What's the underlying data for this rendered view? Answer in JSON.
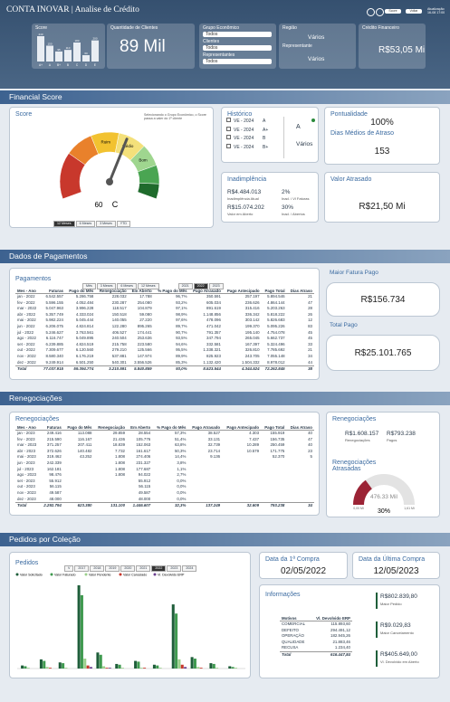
{
  "header": {
    "brand": "CONTA INOVAR",
    "title": "Analise de Crédito",
    "buttons": [
      "Score",
      "Voltar"
    ],
    "update_label": "Atualização",
    "update_time": "16-08 17:00"
  },
  "score_chart": {
    "type": "bar",
    "title": "Score",
    "categories": [
      "A+",
      "A",
      "B+",
      "B",
      "C",
      "D",
      "E"
    ],
    "values": [
      240,
      150,
      95,
      110,
      180,
      60,
      200
    ],
    "color": "#e8edf3"
  },
  "clients": {
    "title": "Quantidade de Clientes",
    "value": "89 Mil"
  },
  "filters": [
    {
      "label": "Grupo Econômico",
      "value": "Todos"
    },
    {
      "label": "Clientes",
      "value": "Todos"
    },
    {
      "label": "Representantes",
      "value": "Todos"
    }
  ],
  "region": {
    "label": "Região",
    "value": "Vários",
    "rep_label": "Representante",
    "rep_value": "Vários"
  },
  "credit": {
    "title": "Crédito Financeiro",
    "value": "R$53,05 Mi"
  },
  "sections": [
    "Financial Score",
    "Dados de Pagamentos",
    "Renegociações",
    "Pedidos por Coleção"
  ],
  "score": {
    "title": "Score",
    "note": "Selecionando o Grupo Econômico, o Score passa a valer do 1º cliente",
    "gauge": {
      "lim": [
        0,
        100
      ],
      "value": 60,
      "grade": "C",
      "bands": [
        {
          "from": 0,
          "to": 25,
          "color": "#c8382c"
        },
        {
          "from": 25,
          "to": 40,
          "color": "#e9812b"
        },
        {
          "from": 40,
          "to": 55,
          "color": "#f2c230",
          "label": "Ruim"
        },
        {
          "from": 55,
          "to": 70,
          "color": "#f4e07a",
          "label": "Médio"
        },
        {
          "from": 70,
          "to": 82,
          "color": "#9fd68f",
          "label": "Bom"
        },
        {
          "from": 82,
          "to": 92,
          "color": "#4aa552"
        },
        {
          "from": 92,
          "to": 100,
          "color": "#1f6b2c"
        }
      ]
    },
    "periods": [
      "12 Meses",
      "6 Meses",
      "3 Meses",
      "YTD"
    ],
    "selected_period": 0
  },
  "historico": {
    "title": "Histórico",
    "items": [
      [
        "VE - 2024",
        "A"
      ],
      [
        "VE - 2024",
        "A+"
      ],
      [
        "VE - 2024",
        "B"
      ],
      [
        "VE - 2024",
        "B+"
      ]
    ],
    "current": "A",
    "group": "Vários"
  },
  "pontualidade": {
    "title": "Pontualidade",
    "value": "100%",
    "dias_title": "Dias Médios de Atraso",
    "dias_value": "153"
  },
  "inadimplencia": {
    "title": "Inadimplência",
    "items": [
      [
        "R$4.484.013",
        "Inadimplência Atual"
      ],
      [
        "2%",
        "Inad. / Vl Faturas"
      ],
      [
        "R$15.074.202",
        "Valor em Aberto"
      ],
      [
        "30%",
        "Inad. / Abertos"
      ]
    ]
  },
  "valor_atrasado": {
    "title": "Valor Atrasado",
    "value": "R$21,50 Mi"
  },
  "pagamentos": {
    "title": "Pagamentos",
    "periods": [
      "Mês",
      "3 Meses",
      "6 Meses",
      "12 Meses"
    ],
    "years": [
      "2021",
      "2022",
      "2023"
    ],
    "selected_year": 1,
    "table": {
      "columns": [
        "Mes - Ano",
        "Faturas",
        "Pago do Mês",
        "Renegociação",
        "Em Aberto",
        "% Pago do Mês",
        "Pago Atrasado",
        "Pago Antecipado",
        "Pago Total",
        "Dias Atraso"
      ],
      "rows": [
        [
          "jan - 2022",
          "6.542.557",
          "5.286.758",
          "228.032",
          "17.788",
          "96,7%",
          "350.591",
          "257.197",
          "5.894.546",
          "21"
        ],
        [
          "fev - 2022",
          "5.596.155",
          "4.052.484",
          "230.287",
          "254.080",
          "93,2%",
          "605.034",
          "236.626",
          "4.864.144",
          "47"
        ],
        [
          "mar - 2022",
          "5.047.963",
          "3.996.228",
          "118.517",
          "104.879",
          "97,1%",
          "891.619",
          "315.416",
          "5.203.263",
          "28"
        ],
        [
          "abr - 2022",
          "5.357.749",
          "4.333.024",
          "150.518",
          "59.080",
          "98,9%",
          "1.148.856",
          "336.342",
          "5.818.222",
          "26"
        ],
        [
          "mai - 2022",
          "5.982.224",
          "5.045.444",
          "140.055",
          "27.220",
          "97,6%",
          "478.096",
          "303.142",
          "5.826.683",
          "12"
        ],
        [
          "jun - 2022",
          "6.206.075",
          "4.824.814",
          "122.280",
          "895.265",
          "89,7%",
          "471.042",
          "199.370",
          "5.095.226",
          "83"
        ],
        [
          "jul - 2022",
          "5.246.627",
          "3.763.561",
          "406.527",
          "174.441",
          "90,7%",
          "791.357",
          "195.140",
          "4.754.078",
          "45"
        ],
        [
          "ago - 2022",
          "6.116.747",
          "5.049.895",
          "240.504",
          "253.636",
          "93,5%",
          "347.794",
          "265.045",
          "5.662.737",
          "45"
        ],
        [
          "set - 2022",
          "6.239.885",
          "4.824.519",
          "215.758",
          "223.580",
          "94,6%",
          "332.581",
          "167.397",
          "5.324.496",
          "33"
        ],
        [
          "out - 2022",
          "7.309.677",
          "6.120.560",
          "279.210",
          "125.566",
          "95,5%",
          "1.338.321",
          "326.810",
          "7.785.692",
          "21"
        ],
        [
          "nov - 2022",
          "8.580.340",
          "6.176.219",
          "537.881",
          "147.974",
          "89,9%",
          "825.923",
          "243.705",
          "7.055.148",
          "34"
        ],
        [
          "dez - 2022",
          "9.249.914",
          "6.501.250",
          "540.301",
          "3.556.526",
          "85,3%",
          "1.132.420",
          "1.504.332",
          "8.978.012",
          "44"
        ]
      ],
      "total": [
        "Total",
        "77.037.915",
        "59.394.774",
        "3.210.591",
        "5.840.859",
        "93,0%",
        "8.523.544",
        "4.344.524",
        "72.262.845",
        "38"
      ]
    }
  },
  "maior_fatura": {
    "title": "Maior Fatura Pago",
    "value": "R$156.734"
  },
  "total_pago": {
    "title": "Total Pago",
    "value": "R$25.101.765"
  },
  "renegociacoes": {
    "title": "Renegociações",
    "table": {
      "columns": [
        "Mes - Ano",
        "Faturas",
        "Pago do Mês",
        "Renegociação",
        "Em Aberto",
        "% Pago do Mês",
        "Pago Atrasado",
        "Pago Antecipado",
        "Pago Total",
        "Dias Atraso"
      ],
      "rows": [
        [
          "jan - 2023",
          "249.416",
          "113.088",
          "29.859",
          "28.554",
          "57,3%",
          "38.527",
          "4.303",
          "155.919",
          "40"
        ],
        [
          "fev - 2023",
          "215.590",
          "116.167",
          "21.436",
          "105.776",
          "51,4%",
          "33.131",
          "7.437",
          "156.735",
          "47"
        ],
        [
          "mar - 2023",
          "371.257",
          "207.411",
          "18.839",
          "152.063",
          "63,8%",
          "32.739",
          "10.289",
          "250.459",
          "40"
        ],
        [
          "abr - 2023",
          "372.626",
          "140.482",
          "7.732",
          "161.617",
          "50,3%",
          "23.714",
          "10.579",
          "171.775",
          "23"
        ],
        [
          "mai - 2023",
          "319.462",
          "43.252",
          "1.808",
          "274.406",
          "14,4%",
          "9.136",
          null,
          "52.370",
          "5"
        ],
        [
          "jun - 2023",
          "242.339",
          null,
          "1.808",
          "231.327",
          "3,8%",
          null,
          null,
          null,
          null
        ],
        [
          "jul - 2023",
          "162.181",
          null,
          "1.808",
          "177.687",
          "1,1%",
          null,
          null,
          null,
          null
        ],
        [
          "ago - 2023",
          "98.476",
          null,
          "1.808",
          "94.022",
          "2,7%",
          null,
          null,
          null,
          null
        ],
        [
          "set - 2023",
          "55.912",
          null,
          null,
          "55.912",
          "0,0%",
          null,
          null,
          null,
          null
        ],
        [
          "out - 2023",
          "56.115",
          null,
          null,
          "56.115",
          "0,0%",
          null,
          null,
          null,
          null
        ],
        [
          "nov - 2023",
          "49.587",
          null,
          null,
          "49.587",
          "0,0%",
          null,
          null,
          null,
          null
        ],
        [
          "dez - 2023",
          "48.000",
          null,
          null,
          "48.000",
          "0,0%",
          null,
          null,
          null,
          null
        ]
      ],
      "total": [
        "Total",
        "2.292.794",
        "623.380",
        "131.100",
        "1.446.607",
        "32,3%",
        "137.249",
        "32.609",
        "793.238",
        "34"
      ]
    }
  },
  "reneg_kpi": {
    "title": "Renegociações",
    "items": [
      [
        "R$1.608.157",
        "Renegociações"
      ],
      [
        "R$793.238",
        "Pagos"
      ]
    ],
    "late_title": "Renegociações Atrasadas",
    "gauge": {
      "value": 476.33,
      "value_label": "476.33 Mil",
      "lim": [
        {
          "value": 0,
          "label": "0,00 Mi"
        },
        {
          "value": 1608.16,
          "label": "1,61 Mi"
        }
      ],
      "percent": "30%",
      "color": "#9b2335"
    }
  },
  "pedidos": {
    "type": "bar",
    "title": "Pedidos",
    "years": [
      "V",
      "2017",
      "2018",
      "2019",
      "2020",
      "2021",
      "2022",
      "2023",
      "2024"
    ],
    "selected_year": 6,
    "categories": [
      null,
      null,
      null,
      null,
      null,
      null,
      null,
      null,
      null,
      null,
      null,
      null
    ],
    "series": [
      {
        "name": "Valor Solicitado",
        "color": "#1e5e3a",
        "values": [
          0.4,
          1.2,
          0.8,
          10.9,
          2.1,
          0.6,
          1.0,
          0.5,
          8.4,
          1.5,
          0.7,
          0.3
        ]
      },
      {
        "name": "Valor Faturado",
        "color": "#3f9a4f",
        "values": [
          0.3,
          1.0,
          0.7,
          9.6,
          1.8,
          0.5,
          0.9,
          0.4,
          7.2,
          1.3,
          0.6,
          0.2
        ]
      },
      {
        "name": "Valor Pendente",
        "color": "#9bd08c",
        "values": [
          0.1,
          0.2,
          0.1,
          1.3,
          0.3,
          0.1,
          0.1,
          0.1,
          1.2,
          0.2,
          0.1,
          0.1
        ]
      },
      {
        "name": "Valor Cancelado",
        "color": "#c8382c",
        "values": [
          0,
          0.1,
          0,
          0.4,
          0.1,
          0,
          0.1,
          0,
          0.5,
          0.1,
          0,
          0
        ]
      },
      {
        "name": "Vl. Devolvido ERP",
        "color": "#6b3f8f",
        "values": [
          0,
          0,
          0,
          0.2,
          0.1,
          0,
          0,
          0,
          0.2,
          0,
          0,
          0
        ]
      }
    ]
  },
  "primeira_compra": {
    "title": "Data da 1ª Compra",
    "value": "02/05/2022"
  },
  "ultima_compra": {
    "title": "Data da Última Compra",
    "value": "12/05/2023"
  },
  "informacoes": {
    "title": "Informações",
    "kpis": [
      [
        "R$802.839,80",
        "Maior Pedido"
      ],
      [
        "R$9.029,83",
        "Maior Cancelamento"
      ],
      [
        "R$405.649,00",
        "Vl. Devolvido em Aberto"
      ]
    ],
    "table": {
      "columns": [
        "Motivos",
        "Vl. Devolvido ERP"
      ],
      "rows": [
        [
          "COMERCIAL",
          "115.893,60"
        ],
        [
          "DEFEITO",
          "294.491,12"
        ],
        [
          "OPERAÇÃO",
          "182.945,26"
        ],
        [
          "QUALIDADE",
          "21.883,46"
        ],
        [
          "RECUSA",
          "1.234,40"
        ]
      ],
      "total": [
        "Total",
        "616.447,84"
      ]
    }
  }
}
